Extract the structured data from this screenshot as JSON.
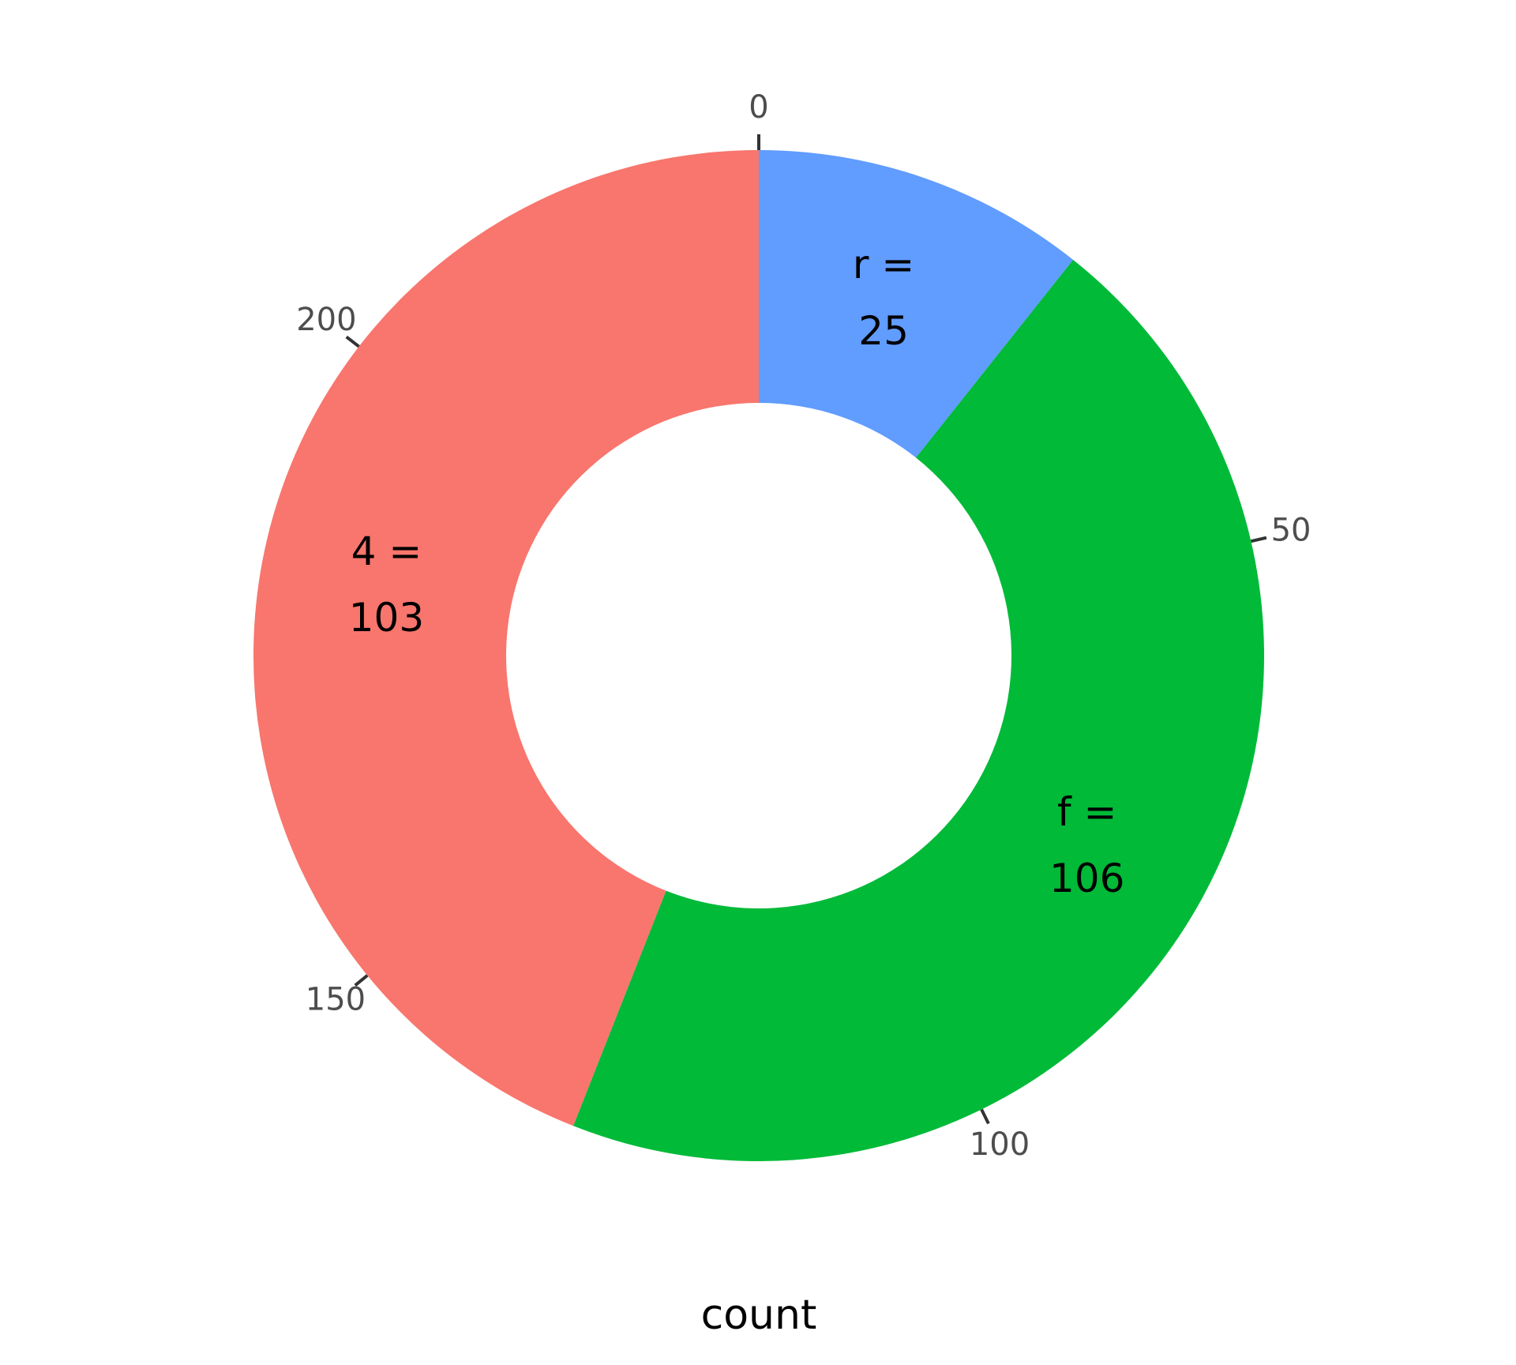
{
  "chart_data": {
    "type": "donut",
    "categories": [
      "r",
      "f",
      "4"
    ],
    "values": [
      25,
      106,
      103
    ],
    "value_labels": [
      "r =\n25",
      "f =\n106",
      "4 =\n103"
    ],
    "colors": [
      "#619CFF",
      "#00BA38",
      "#F8766D"
    ],
    "xlim": [
      0,
      234
    ],
    "xticks": [
      0,
      50,
      100,
      150,
      200
    ],
    "xlabel": "count"
  }
}
